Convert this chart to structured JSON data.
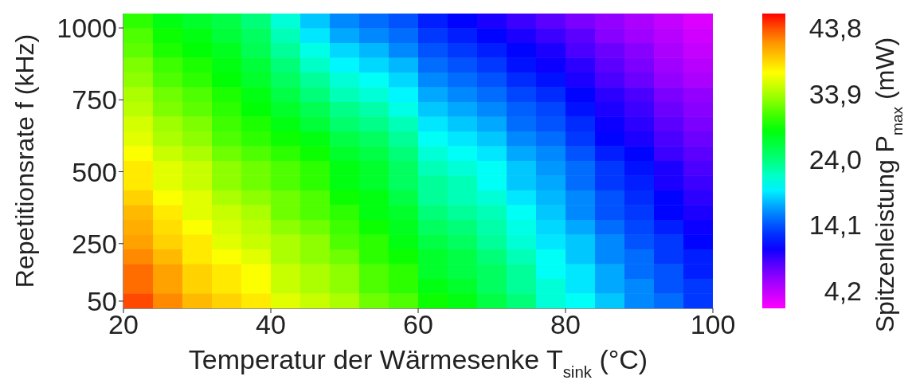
{
  "chart_data": {
    "type": "heatmap",
    "xlabel": "Temperatur der Wärmesenke T$_{sink}$ (°C)",
    "ylabel": "Repetitionsrate f (kHz)",
    "clabel": "Spitzenleistung P$_{max}$ (mW)",
    "x": [
      22,
      26,
      30,
      34,
      38,
      42,
      46,
      50,
      54,
      58,
      62,
      66,
      70,
      74,
      78,
      82,
      86,
      90,
      94,
      98
    ],
    "y": [
      1024.375,
      973.125,
      921.875,
      870.625,
      819.375,
      768.125,
      716.875,
      665.625,
      614.375,
      563.125,
      511.875,
      460.625,
      409.375,
      358.125,
      306.875,
      255.625,
      204.375,
      153.125,
      101.875,
      50.625
    ],
    "xlim": [
      20,
      100
    ],
    "xticks": [
      20,
      40,
      60,
      80,
      100
    ],
    "ylim": [
      25,
      1050
    ],
    "yticks": [
      50,
      250,
      500,
      750,
      1000
    ],
    "clim": [
      1.5,
      46
    ],
    "cticks": [
      {
        "value": 4.2,
        "label": "4,2"
      },
      {
        "value": 14.1,
        "label": "14,1"
      },
      {
        "value": 24.0,
        "label": "24,0"
      },
      {
        "value": 33.9,
        "label": "33,9"
      },
      {
        "value": 43.8,
        "label": "43,8"
      }
    ],
    "cells": [
      [
        30,
        28,
        27,
        26,
        24,
        21,
        18,
        16,
        15,
        14,
        12,
        11,
        10,
        9,
        8,
        7,
        6,
        5,
        4,
        3
      ],
      [
        31,
        29,
        28,
        26.5,
        25,
        22,
        19,
        17,
        16,
        15,
        13,
        12,
        11,
        10,
        9,
        8,
        6.5,
        5.5,
        4.5,
        3.5
      ],
      [
        31.5,
        29.5,
        28.5,
        27.5,
        25.5,
        23,
        20.5,
        18.5,
        17.5,
        16,
        14,
        13,
        12,
        11,
        10,
        8.5,
        7.5,
        6.5,
        5,
        4
      ],
      [
        32.5,
        30.5,
        29.5,
        28,
        26.5,
        24,
        21.5,
        19.5,
        18.5,
        17.5,
        15,
        14,
        13,
        11.5,
        10.5,
        9.5,
        8,
        7,
        5.5,
        4.5
      ],
      [
        33,
        31,
        30,
        28.5,
        27,
        25,
        23,
        21,
        20,
        18.5,
        16,
        15,
        14,
        12.5,
        11.5,
        10,
        8.5,
        7.5,
        6,
        5
      ],
      [
        34,
        32,
        31,
        29.5,
        28,
        26,
        24,
        22,
        21,
        19.5,
        17,
        16,
        15,
        13.5,
        12.5,
        11,
        9.5,
        8.5,
        7,
        6
      ],
      [
        34.5,
        32.5,
        31.5,
        30,
        28.5,
        27,
        25.5,
        23.5,
        22.5,
        20.5,
        18,
        17,
        16,
        14.5,
        13.5,
        11.5,
        10,
        9,
        7.5,
        6.5
      ],
      [
        35.5,
        33.5,
        32.5,
        30.5,
        29.5,
        28,
        26.5,
        24.5,
        23.5,
        22,
        19,
        18,
        17,
        15,
        14,
        12.5,
        10.5,
        9.5,
        8,
        7
      ],
      [
        36,
        34,
        33,
        31,
        30,
        29,
        28,
        26,
        25,
        23,
        20,
        19,
        18,
        16,
        15,
        13,
        11,
        10,
        8.5,
        7.5
      ],
      [
        37,
        35,
        34,
        32,
        31,
        30,
        29,
        27,
        26,
        24,
        21,
        20,
        19,
        17,
        16,
        14,
        12,
        11,
        9,
        8
      ],
      [
        38,
        36,
        35,
        33,
        32,
        31,
        30,
        28,
        27,
        25,
        22,
        21,
        20,
        18,
        16.5,
        15,
        13,
        11.5,
        10,
        8.5
      ],
      [
        38,
        36,
        35,
        33,
        32,
        31,
        30,
        28,
        27,
        25,
        23,
        22,
        20,
        18,
        17,
        15,
        13,
        12,
        10,
        9
      ],
      [
        39,
        37,
        36,
        34,
        33,
        32,
        31,
        29,
        28,
        26,
        23,
        22,
        21,
        19,
        17.5,
        16,
        14,
        12.5,
        11,
        9.5
      ],
      [
        40,
        38,
        36,
        35,
        34,
        32,
        31,
        30,
        28,
        27,
        24,
        23,
        22,
        20,
        18,
        16,
        14,
        13,
        11,
        10
      ],
      [
        40.5,
        38.5,
        37,
        35.5,
        34.5,
        33,
        32,
        30.5,
        29,
        27.5,
        25,
        24,
        22.5,
        20.5,
        18.5,
        17,
        15,
        13.5,
        12,
        10.5
      ],
      [
        41,
        39,
        38,
        36,
        35,
        34,
        33,
        31,
        30,
        28,
        26,
        25,
        23,
        21,
        19,
        18,
        16,
        14,
        13,
        11
      ],
      [
        42,
        40,
        38,
        37,
        36,
        34,
        33,
        32,
        30,
        29,
        27,
        26,
        24,
        22,
        20,
        18,
        16,
        15,
        13,
        12
      ],
      [
        43,
        41,
        39,
        38,
        37,
        35,
        34,
        33,
        31,
        30,
        27,
        26,
        25,
        23,
        20,
        19,
        17,
        15,
        14,
        12
      ],
      [
        43,
        41,
        39,
        38,
        37,
        35,
        34,
        33,
        31,
        30,
        28,
        27,
        25,
        23,
        21,
        19,
        17,
        16,
        14,
        13
      ],
      [
        44,
        42,
        40,
        39,
        38,
        36,
        35,
        34,
        32,
        31,
        29,
        28,
        26,
        24,
        21,
        20,
        18,
        16,
        15,
        13
      ]
    ]
  }
}
